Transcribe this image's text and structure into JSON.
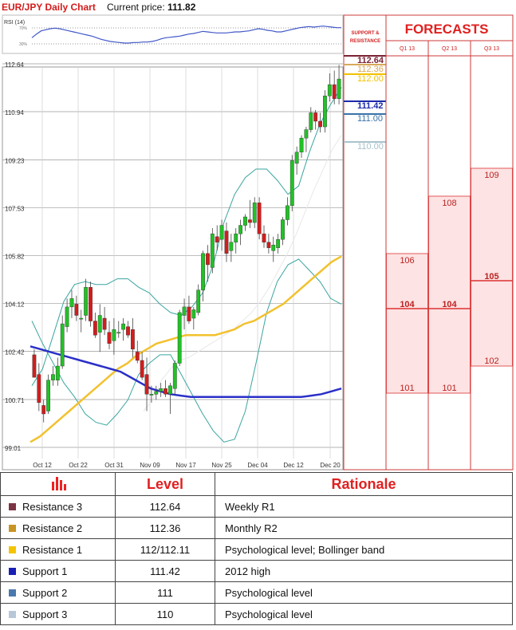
{
  "header": {
    "symbol": "EUR/JPY Daily Chart",
    "price_label": "Current price:",
    "price_value": "111.82"
  },
  "rsi": {
    "label": "RSI (14)",
    "ticks": [
      "70%",
      "30%"
    ],
    "values": [
      55,
      62,
      68,
      70,
      72,
      73,
      72,
      70,
      68,
      66,
      64,
      62,
      60,
      58,
      55,
      52,
      50,
      48,
      47,
      46,
      45,
      45,
      46,
      46,
      47,
      47,
      48,
      50,
      53,
      55,
      56,
      57,
      58,
      60,
      62,
      63,
      65,
      67,
      66,
      65,
      64,
      64,
      64,
      65,
      66,
      66,
      67,
      68,
      70,
      72,
      71,
      69,
      68,
      66,
      66,
      68,
      70,
      72,
      74,
      75,
      76,
      75,
      76,
      77,
      76,
      75,
      74,
      74
    ]
  },
  "price_axis": {
    "ticks": [
      "112.64",
      "110.94",
      "109.23",
      "107.53",
      "105.82",
      "104.12",
      "102.42",
      "100.71",
      "99.01"
    ]
  },
  "date_axis": {
    "ticks": [
      "Oct 12",
      "Oct 22",
      "Oct 31",
      "Nov 09",
      "Nov 17",
      "Nov 25",
      "Dec 04",
      "Dec 12",
      "Dec 20"
    ]
  },
  "levels_panel": {
    "header": "SUPPORT & RESISTANCE",
    "labels": [
      "112.64",
      "112.36",
      "112.00",
      "111.42",
      "111.00",
      "110.00"
    ],
    "colors": [
      "#7b2335",
      "#d8a95c",
      "#f2c200",
      "#1b2aa8",
      "#3a73a8",
      "#a9c3cc"
    ]
  },
  "forecasts": {
    "title": "FORECASTS",
    "quarters": [
      {
        "label": "Q1 13",
        "high": "106",
        "mid": "104",
        "low": "101"
      },
      {
        "label": "Q2 13",
        "high": "108",
        "mid": "104",
        "low": "101"
      },
      {
        "label": "Q3 13",
        "high": "109",
        "mid": "105",
        "low": "102"
      }
    ]
  },
  "chart_data": {
    "type": "candlestick",
    "title": "EUR/JPY Daily Chart",
    "ylim": [
      99.01,
      112.64
    ],
    "x": [
      "Oct 12",
      "Oct 22",
      "Oct 31",
      "Nov 09",
      "Nov 17",
      "Nov 25",
      "Dec 04",
      "Dec 12",
      "Dec 20"
    ],
    "candles": [
      {
        "o": 102.3,
        "h": 102.5,
        "l": 101.5,
        "c": 101.5
      },
      {
        "o": 101.6,
        "h": 102.0,
        "l": 100.3,
        "c": 100.6
      },
      {
        "o": 100.5,
        "h": 100.7,
        "l": 99.9,
        "c": 100.2
      },
      {
        "o": 100.3,
        "h": 101.6,
        "l": 100.2,
        "c": 101.4
      },
      {
        "o": 101.4,
        "h": 101.9,
        "l": 101.2,
        "c": 101.6
      },
      {
        "o": 101.4,
        "h": 102.2,
        "l": 101.2,
        "c": 101.9
      },
      {
        "o": 101.9,
        "h": 103.7,
        "l": 101.8,
        "c": 103.4
      },
      {
        "o": 103.3,
        "h": 104.3,
        "l": 103.1,
        "c": 104.0
      },
      {
        "o": 104.0,
        "h": 104.6,
        "l": 103.6,
        "c": 104.3
      },
      {
        "o": 104.1,
        "h": 104.4,
        "l": 103.5,
        "c": 103.7
      },
      {
        "o": 103.6,
        "h": 103.9,
        "l": 103.1,
        "c": 103.6
      },
      {
        "o": 103.7,
        "h": 105.0,
        "l": 103.5,
        "c": 104.7
      },
      {
        "o": 104.7,
        "h": 104.9,
        "l": 103.3,
        "c": 103.5
      },
      {
        "o": 103.5,
        "h": 103.8,
        "l": 102.9,
        "c": 103.0
      },
      {
        "o": 103.1,
        "h": 104.1,
        "l": 102.4,
        "c": 103.7
      },
      {
        "o": 103.6,
        "h": 104.0,
        "l": 103.0,
        "c": 103.2
      },
      {
        "o": 103.1,
        "h": 103.5,
        "l": 102.5,
        "c": 102.7
      },
      {
        "o": 102.8,
        "h": 103.6,
        "l": 102.3,
        "c": 103.2
      },
      {
        "o": 103.1,
        "h": 103.5,
        "l": 102.9,
        "c": 103.1
      },
      {
        "o": 103.2,
        "h": 103.6,
        "l": 102.8,
        "c": 103.4
      },
      {
        "o": 103.3,
        "h": 103.5,
        "l": 102.9,
        "c": 103.0
      },
      {
        "o": 103.2,
        "h": 103.6,
        "l": 102.2,
        "c": 102.5
      },
      {
        "o": 102.4,
        "h": 102.8,
        "l": 102.0,
        "c": 102.1
      },
      {
        "o": 102.1,
        "h": 102.4,
        "l": 101.4,
        "c": 101.5
      },
      {
        "o": 101.6,
        "h": 102.2,
        "l": 100.3,
        "c": 100.9
      },
      {
        "o": 100.9,
        "h": 101.2,
        "l": 100.6,
        "c": 100.9
      },
      {
        "o": 100.9,
        "h": 101.2,
        "l": 100.7,
        "c": 101.0
      },
      {
        "o": 101.0,
        "h": 101.3,
        "l": 100.8,
        "c": 101.1
      },
      {
        "o": 101.1,
        "h": 101.4,
        "l": 100.8,
        "c": 100.9
      },
      {
        "o": 100.9,
        "h": 101.3,
        "l": 100.2,
        "c": 101.2
      },
      {
        "o": 101.1,
        "h": 102.1,
        "l": 100.9,
        "c": 102.0
      },
      {
        "o": 102.0,
        "h": 103.9,
        "l": 101.9,
        "c": 103.8
      },
      {
        "o": 103.7,
        "h": 104.3,
        "l": 103.2,
        "c": 104.0
      },
      {
        "o": 104.0,
        "h": 104.4,
        "l": 103.4,
        "c": 103.5
      },
      {
        "o": 103.6,
        "h": 104.0,
        "l": 103.2,
        "c": 103.9
      },
      {
        "o": 103.8,
        "h": 104.8,
        "l": 103.7,
        "c": 104.6
      },
      {
        "o": 104.6,
        "h": 106.0,
        "l": 104.2,
        "c": 105.9
      },
      {
        "o": 105.9,
        "h": 106.2,
        "l": 104.9,
        "c": 105.5
      },
      {
        "o": 105.4,
        "h": 106.8,
        "l": 105.2,
        "c": 106.6
      },
      {
        "o": 106.5,
        "h": 106.9,
        "l": 106.0,
        "c": 106.3
      },
      {
        "o": 106.4,
        "h": 107.1,
        "l": 106.0,
        "c": 106.9
      },
      {
        "o": 106.7,
        "h": 107.0,
        "l": 105.6,
        "c": 105.9
      },
      {
        "o": 106.0,
        "h": 106.6,
        "l": 105.6,
        "c": 106.3
      },
      {
        "o": 106.3,
        "h": 106.8,
        "l": 105.9,
        "c": 106.6
      },
      {
        "o": 106.6,
        "h": 107.1,
        "l": 106.2,
        "c": 106.9
      },
      {
        "o": 106.9,
        "h": 107.3,
        "l": 106.7,
        "c": 107.2
      },
      {
        "o": 107.1,
        "h": 107.8,
        "l": 106.8,
        "c": 107.0
      },
      {
        "o": 107.0,
        "h": 107.9,
        "l": 106.8,
        "c": 107.7
      },
      {
        "o": 107.7,
        "h": 107.9,
        "l": 106.4,
        "c": 106.6
      },
      {
        "o": 106.6,
        "h": 106.9,
        "l": 106.1,
        "c": 106.3
      },
      {
        "o": 106.3,
        "h": 106.6,
        "l": 105.9,
        "c": 106.1
      },
      {
        "o": 106.0,
        "h": 106.5,
        "l": 105.6,
        "c": 106.2
      },
      {
        "o": 106.1,
        "h": 106.6,
        "l": 105.9,
        "c": 106.4
      },
      {
        "o": 106.4,
        "h": 107.2,
        "l": 106.2,
        "c": 107.1
      },
      {
        "o": 107.1,
        "h": 107.9,
        "l": 106.9,
        "c": 107.6
      },
      {
        "o": 107.6,
        "h": 109.4,
        "l": 107.4,
        "c": 109.2
      },
      {
        "o": 109.1,
        "h": 109.7,
        "l": 108.7,
        "c": 109.5
      },
      {
        "o": 109.5,
        "h": 110.1,
        "l": 109.3,
        "c": 110.0
      },
      {
        "o": 110.0,
        "h": 110.4,
        "l": 109.5,
        "c": 110.3
      },
      {
        "o": 110.3,
        "h": 111.1,
        "l": 110.2,
        "c": 110.9
      },
      {
        "o": 110.9,
        "h": 111.0,
        "l": 110.3,
        "c": 110.6
      },
      {
        "o": 110.6,
        "h": 110.9,
        "l": 110.2,
        "c": 110.4
      },
      {
        "o": 110.4,
        "h": 111.7,
        "l": 110.2,
        "c": 111.5
      },
      {
        "o": 111.5,
        "h": 112.3,
        "l": 111.3,
        "c": 111.9
      },
      {
        "o": 111.9,
        "h": 112.4,
        "l": 111.2,
        "c": 111.4
      },
      {
        "o": 111.4,
        "h": 112.6,
        "l": 111.2,
        "c": 112.1
      }
    ],
    "ma_yellow": [
      99.2,
      99.4,
      99.7,
      100.0,
      100.3,
      100.6,
      100.9,
      101.2,
      101.5,
      101.8,
      102.0,
      102.3,
      102.5,
      102.7,
      102.8,
      102.9,
      103.0,
      103.0,
      103.0,
      103.0,
      103.1,
      103.2,
      103.4,
      103.5,
      103.7,
      103.9,
      104.1,
      104.4,
      104.7,
      105.0,
      105.3,
      105.6,
      105.8
    ],
    "ma_blue": [
      102.6,
      102.5,
      102.4,
      102.3,
      102.2,
      102.1,
      102.0,
      101.9,
      101.8,
      101.7,
      101.5,
      101.3,
      101.1,
      101.0,
      100.9,
      100.85,
      100.8,
      100.8,
      100.8,
      100.8,
      100.8,
      100.8,
      100.8,
      100.8,
      100.8,
      100.8,
      100.8,
      100.8,
      100.85,
      100.9,
      101.0,
      101.1
    ],
    "bb_upper": [
      101.2,
      101.8,
      103.0,
      104.2,
      104.8,
      104.9,
      104.8,
      104.8,
      105.0,
      105.0,
      104.7,
      104.5,
      104.1,
      103.8,
      103.7,
      104.0,
      104.5,
      105.5,
      107.0,
      108.0,
      108.6,
      108.9,
      108.9,
      108.5,
      108.0,
      108.3,
      109.5,
      110.5,
      111.2,
      111.8
    ],
    "bb_lower": [
      103.5,
      102.7,
      102.0,
      101.3,
      100.8,
      100.2,
      99.9,
      99.8,
      100.2,
      100.7,
      101.6,
      102.0,
      102.3,
      102.3,
      101.6,
      100.9,
      100.2,
      99.6,
      99.2,
      99.3,
      100.3,
      102.0,
      103.8,
      104.9,
      105.5,
      105.7,
      105.3,
      104.9,
      104.3,
      104.1
    ],
    "bb_mid": [
      100.3,
      100.7,
      101.4,
      101.8,
      102.1,
      102.2,
      102.4,
      102.6,
      102.8,
      103.0,
      103.2,
      103.5,
      103.8,
      104.2,
      104.7,
      105.3,
      105.9,
      106.6,
      107.4,
      108.2,
      108.9,
      109.6,
      110.1
    ]
  },
  "table": {
    "headers": [
      "Level",
      "Rationale"
    ],
    "rows": [
      {
        "name": "Resistance 3",
        "level": "112.64",
        "rationale": "Weekly R1",
        "color": "#7b3443"
      },
      {
        "name": "Resistance 2",
        "level": "112.36",
        "rationale": "Monthly R2",
        "color": "#c89523"
      },
      {
        "name": "Resistance 1",
        "level": "112/112.11",
        "rationale": "Psychological level; Bollinger band",
        "color": "#f5c400"
      },
      {
        "name": "Support 1",
        "level": "111.42",
        "rationale": "2012 high",
        "color": "#1a1fb5"
      },
      {
        "name": "Support 2",
        "level": "111",
        "rationale": "Psychological level",
        "color": "#4a79ad"
      },
      {
        "name": "Support 3",
        "level": "110",
        "rationale": "Psychological level",
        "color": "#b7c7d8"
      }
    ]
  }
}
